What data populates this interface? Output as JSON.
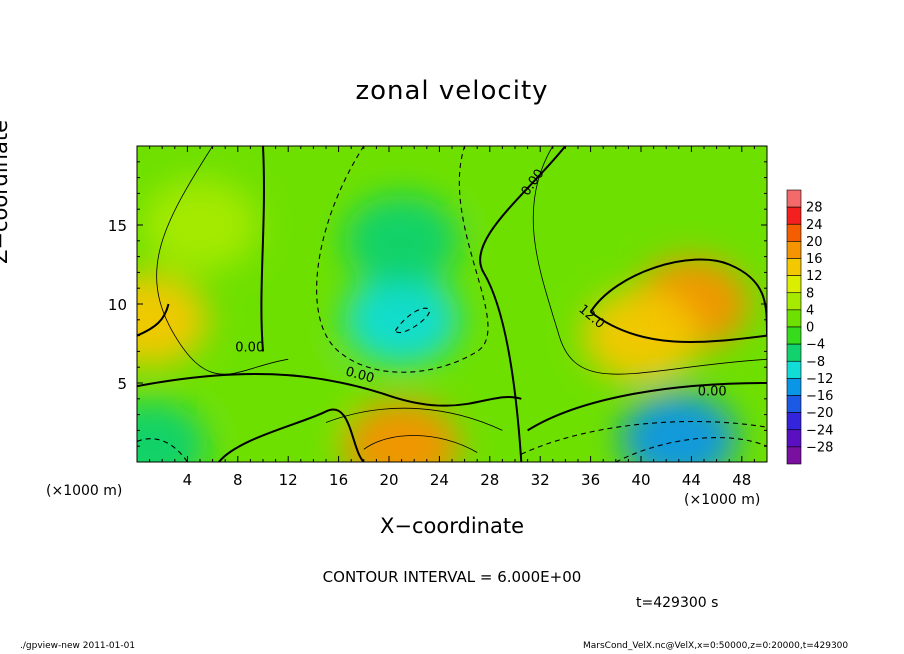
{
  "title": "zonal velocity",
  "xlabel": "X−coordinate",
  "ylabel": "Z−coordinate",
  "x_unit_left": "(×1000 m)",
  "x_unit_right": "(×1000 m)",
  "contour_interval": "CONTOUR INTERVAL = 6.000E+00",
  "time_label": "t=429300  s",
  "footer_left": "./gpview-new   2011-01-01",
  "footer_right": "MarsCond_VelX.nc@VelX,x=0:50000,z=0:20000,t=429300",
  "chart_data": {
    "type": "heatmap",
    "title": "zonal velocity",
    "xlabel": "X−coordinate",
    "ylabel": "Z−coordinate",
    "xlim": [
      0,
      50
    ],
    "ylim": [
      0,
      20
    ],
    "x_ticks": [
      4,
      8,
      12,
      16,
      20,
      24,
      28,
      32,
      36,
      40,
      44,
      48
    ],
    "y_ticks": [
      5,
      10,
      15
    ],
    "colorbar_ticks": [
      28,
      24,
      20,
      16,
      12,
      8,
      4,
      0,
      -4,
      -8,
      -12,
      -16,
      -20,
      -24,
      -28
    ],
    "colorbar_colors": [
      "#f46a6a",
      "#f42020",
      "#f45e00",
      "#f49400",
      "#f4c800",
      "#dcee00",
      "#a6ea00",
      "#6ee000",
      "#36dc1c",
      "#12d26e",
      "#12dcd6",
      "#0a96e6",
      "#1c5ae6",
      "#3424dc",
      "#5a10c0",
      "#7a10a0"
    ],
    "contour_labels": [
      "0.00",
      "0.00",
      "0.00",
      "0.00",
      "12.0"
    ],
    "notes": {
      "field_values": [
        {
          "x": 21,
          "z": 9,
          "u": -10
        },
        {
          "x": 21,
          "z": 14,
          "u": -8
        },
        {
          "x": 44,
          "z": 10,
          "u": 16
        },
        {
          "x": 40,
          "z": 8,
          "u": 12
        },
        {
          "x": 43,
          "z": 1.5,
          "u": -14
        },
        {
          "x": 21,
          "z": 1,
          "u": 18
        },
        {
          "x": 1,
          "z": 9,
          "u": 14
        },
        {
          "x": 5,
          "z": 15,
          "u": 4
        },
        {
          "x": 32,
          "z": 16,
          "u": 2
        },
        {
          "x": 1,
          "z": 1,
          "u": -8
        },
        {
          "x": 12,
          "z": 4,
          "u": 2
        }
      ]
    }
  }
}
